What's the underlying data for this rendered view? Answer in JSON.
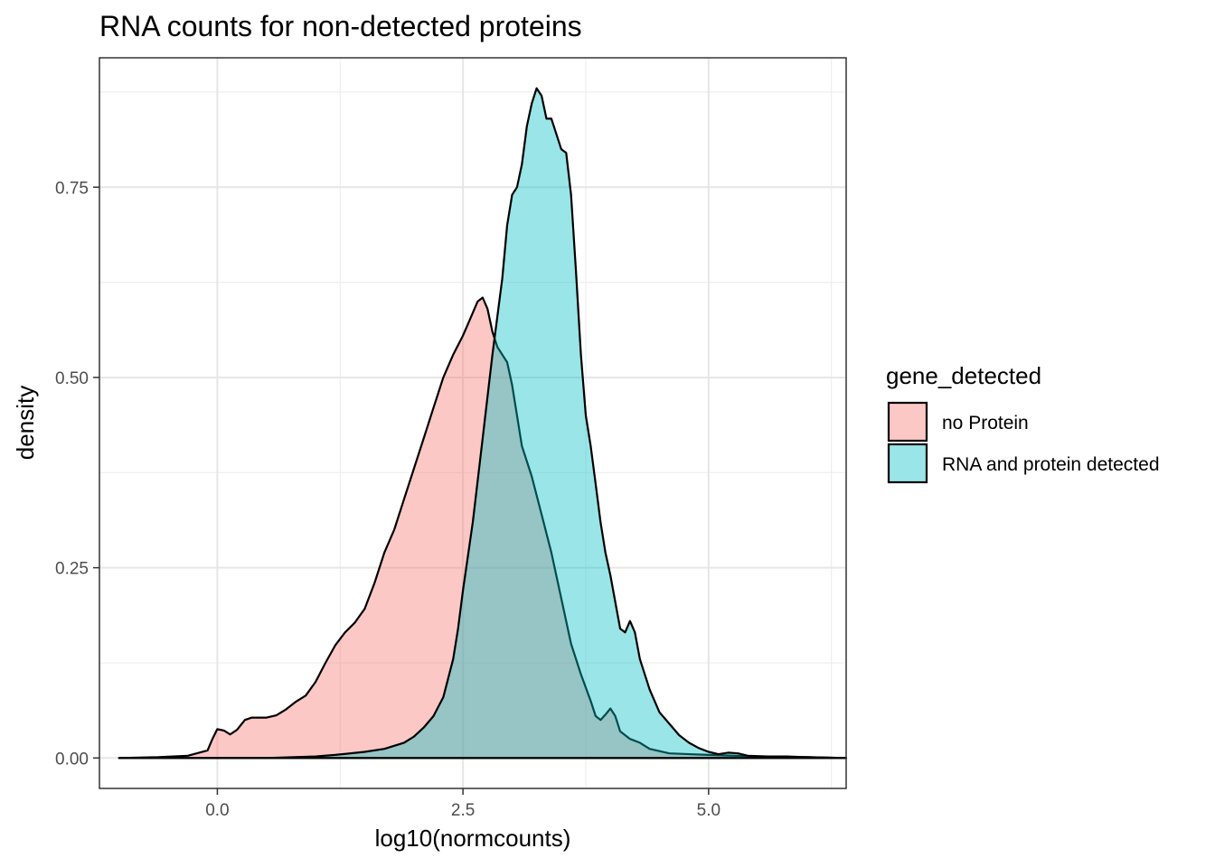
{
  "chart_data": {
    "type": "area",
    "title": "RNA counts for non-detected proteins",
    "xlabel": "log10(normcounts)",
    "ylabel": "density",
    "xlim": [
      -1.2,
      6.4
    ],
    "ylim": [
      -0.04,
      0.92
    ],
    "x_ticks": [
      0.0,
      2.5,
      5.0
    ],
    "x_tick_labels": [
      "0.0",
      "2.5",
      "5.0"
    ],
    "y_ticks": [
      0.0,
      0.25,
      0.5,
      0.75
    ],
    "y_tick_labels": [
      "0.00",
      "0.25",
      "0.50",
      "0.75"
    ],
    "grid": true,
    "legend": {
      "title": "gene_detected",
      "position": "right"
    },
    "series": [
      {
        "name": "no Protein",
        "color": "#F8766D",
        "opacity": 0.4,
        "points": [
          [
            -1.0,
            0.0
          ],
          [
            -0.6,
            0.001
          ],
          [
            -0.3,
            0.003
          ],
          [
            -0.1,
            0.01
          ],
          [
            -0.05,
            0.025
          ],
          [
            0.0,
            0.038
          ],
          [
            0.07,
            0.036
          ],
          [
            0.13,
            0.031
          ],
          [
            0.2,
            0.037
          ],
          [
            0.28,
            0.05
          ],
          [
            0.35,
            0.053
          ],
          [
            0.5,
            0.053
          ],
          [
            0.6,
            0.056
          ],
          [
            0.7,
            0.064
          ],
          [
            0.8,
            0.074
          ],
          [
            0.9,
            0.082
          ],
          [
            1.0,
            0.1
          ],
          [
            1.1,
            0.125
          ],
          [
            1.2,
            0.148
          ],
          [
            1.3,
            0.165
          ],
          [
            1.4,
            0.178
          ],
          [
            1.5,
            0.196
          ],
          [
            1.6,
            0.23
          ],
          [
            1.7,
            0.27
          ],
          [
            1.8,
            0.3
          ],
          [
            1.9,
            0.34
          ],
          [
            2.0,
            0.38
          ],
          [
            2.1,
            0.42
          ],
          [
            2.2,
            0.46
          ],
          [
            2.3,
            0.5
          ],
          [
            2.4,
            0.53
          ],
          [
            2.5,
            0.555
          ],
          [
            2.55,
            0.57
          ],
          [
            2.6,
            0.585
          ],
          [
            2.65,
            0.6
          ],
          [
            2.7,
            0.605
          ],
          [
            2.75,
            0.59
          ],
          [
            2.8,
            0.56
          ],
          [
            2.85,
            0.54
          ],
          [
            2.9,
            0.53
          ],
          [
            2.95,
            0.52
          ],
          [
            3.0,
            0.49
          ],
          [
            3.05,
            0.45
          ],
          [
            3.1,
            0.41
          ],
          [
            3.2,
            0.37
          ],
          [
            3.3,
            0.32
          ],
          [
            3.4,
            0.27
          ],
          [
            3.5,
            0.21
          ],
          [
            3.6,
            0.15
          ],
          [
            3.7,
            0.11
          ],
          [
            3.8,
            0.075
          ],
          [
            3.85,
            0.055
          ],
          [
            3.9,
            0.05
          ],
          [
            3.95,
            0.057
          ],
          [
            4.0,
            0.065
          ],
          [
            4.05,
            0.055
          ],
          [
            4.1,
            0.035
          ],
          [
            4.2,
            0.025
          ],
          [
            4.3,
            0.02
          ],
          [
            4.4,
            0.012
          ],
          [
            4.6,
            0.006
          ],
          [
            5.0,
            0.004
          ],
          [
            5.5,
            0.002
          ],
          [
            6.0,
            0.001
          ],
          [
            6.4,
            0.0
          ]
        ]
      },
      {
        "name": "RNA and protein detected",
        "color": "#00BFC4",
        "opacity": 0.4,
        "points": [
          [
            -1.0,
            0.0
          ],
          [
            0.5,
            0.0
          ],
          [
            1.0,
            0.002
          ],
          [
            1.2,
            0.004
          ],
          [
            1.5,
            0.008
          ],
          [
            1.7,
            0.012
          ],
          [
            1.9,
            0.02
          ],
          [
            2.0,
            0.028
          ],
          [
            2.1,
            0.04
          ],
          [
            2.2,
            0.055
          ],
          [
            2.3,
            0.08
          ],
          [
            2.4,
            0.13
          ],
          [
            2.45,
            0.17
          ],
          [
            2.5,
            0.22
          ],
          [
            2.6,
            0.31
          ],
          [
            2.7,
            0.42
          ],
          [
            2.8,
            0.53
          ],
          [
            2.9,
            0.63
          ],
          [
            2.95,
            0.7
          ],
          [
            3.0,
            0.74
          ],
          [
            3.05,
            0.75
          ],
          [
            3.1,
            0.78
          ],
          [
            3.15,
            0.83
          ],
          [
            3.2,
            0.86
          ],
          [
            3.25,
            0.88
          ],
          [
            3.3,
            0.87
          ],
          [
            3.35,
            0.84
          ],
          [
            3.4,
            0.84
          ],
          [
            3.45,
            0.82
          ],
          [
            3.5,
            0.8
          ],
          [
            3.55,
            0.795
          ],
          [
            3.6,
            0.74
          ],
          [
            3.65,
            0.64
          ],
          [
            3.7,
            0.53
          ],
          [
            3.75,
            0.45
          ],
          [
            3.8,
            0.41
          ],
          [
            3.85,
            0.36
          ],
          [
            3.9,
            0.31
          ],
          [
            3.95,
            0.27
          ],
          [
            4.0,
            0.24
          ],
          [
            4.05,
            0.205
          ],
          [
            4.1,
            0.17
          ],
          [
            4.15,
            0.165
          ],
          [
            4.2,
            0.18
          ],
          [
            4.25,
            0.165
          ],
          [
            4.3,
            0.13
          ],
          [
            4.4,
            0.09
          ],
          [
            4.5,
            0.06
          ],
          [
            4.6,
            0.045
          ],
          [
            4.7,
            0.03
          ],
          [
            4.8,
            0.02
          ],
          [
            4.9,
            0.013
          ],
          [
            5.0,
            0.008
          ],
          [
            5.1,
            0.005
          ],
          [
            5.2,
            0.007
          ],
          [
            5.3,
            0.006
          ],
          [
            5.4,
            0.003
          ],
          [
            5.6,
            0.002
          ],
          [
            5.8,
            0.002
          ],
          [
            6.0,
            0.001
          ],
          [
            6.4,
            0.0
          ]
        ]
      }
    ]
  }
}
